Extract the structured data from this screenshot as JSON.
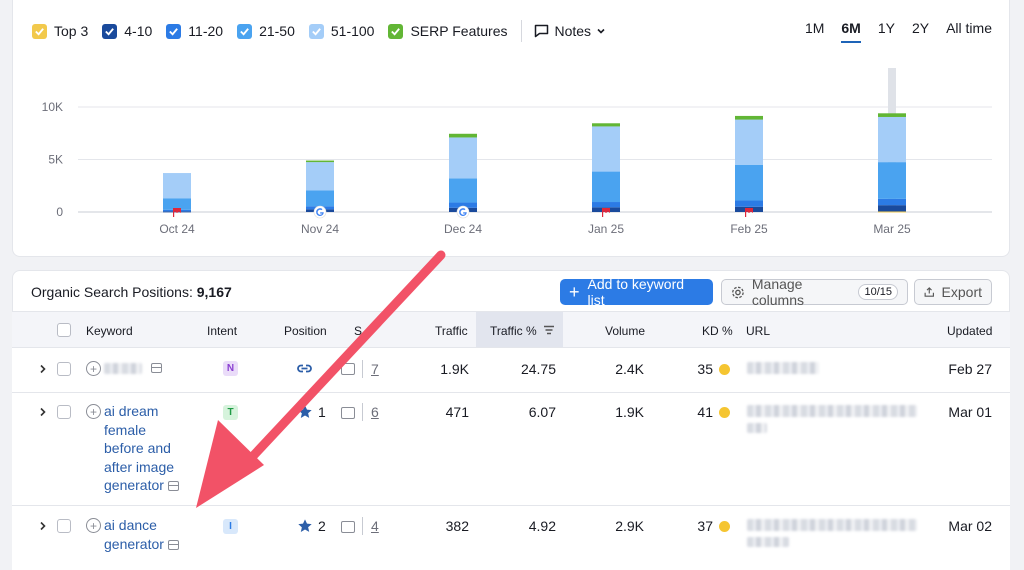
{
  "legend": [
    {
      "label": "Top 3",
      "color": "#f2c94c"
    },
    {
      "label": "4-10",
      "color": "#1a4a9c"
    },
    {
      "label": "11-20",
      "color": "#2c7be5"
    },
    {
      "label": "21-50",
      "color": "#4aa3f0"
    },
    {
      "label": "51-100",
      "color": "#a4cdf8"
    },
    {
      "label": "SERP Features",
      "color": "#62b635"
    }
  ],
  "notes_label": "Notes",
  "ranges": [
    "1M",
    "6M",
    "1Y",
    "2Y",
    "All time"
  ],
  "active_range": "6M",
  "chart_data": {
    "type": "bar",
    "stacked": true,
    "categories": [
      "Oct 24",
      "Nov 24",
      "Dec 24",
      "Jan 25",
      "Feb 25",
      "Mar 25"
    ],
    "y_ticks": [
      "0",
      "5K",
      "10K"
    ],
    "ylim": [
      0,
      10000
    ],
    "series": [
      {
        "name": "Top 3",
        "values": [
          0,
          0,
          0,
          0,
          0,
          50
        ]
      },
      {
        "name": "4-10",
        "values": [
          60,
          250,
          400,
          450,
          500,
          600
        ]
      },
      {
        "name": "11-20",
        "values": [
          150,
          300,
          500,
          500,
          600,
          600
        ]
      },
      {
        "name": "21-50",
        "values": [
          1100,
          1500,
          2300,
          2900,
          3400,
          3500
        ]
      },
      {
        "name": "51-100",
        "values": [
          2400,
          2700,
          3900,
          4300,
          4300,
          4300
        ]
      },
      {
        "name": "SERP Features",
        "values": [
          0,
          150,
          350,
          300,
          350,
          350
        ]
      }
    ]
  },
  "table": {
    "title": "Organic Search Positions:",
    "count": "9,167",
    "add_button": "Add to keyword list",
    "manage_button": "Manage columns",
    "manage_count": "10/15",
    "export_button": "Export",
    "headers": {
      "keyword": "Keyword",
      "intent": "Intent",
      "position": "Position",
      "serp": "S",
      "traffic": "Traffic",
      "traffic_pct": "Traffic %",
      "volume": "Volume",
      "kd": "KD %",
      "url": "URL",
      "updated": "Updated"
    },
    "rows": [
      {
        "keyword": "",
        "intent": "N",
        "position": "",
        "serp_count": "7",
        "traffic": "1.9K",
        "traffic_pct": "24.75",
        "volume": "2.4K",
        "kd": "35",
        "updated": "Feb 27"
      },
      {
        "keyword": "ai dream female before and after image generator",
        "intent": "T",
        "position": "1",
        "serp_count": "6",
        "traffic": "471",
        "traffic_pct": "6.07",
        "volume": "1.9K",
        "kd": "41",
        "updated": "Mar 01"
      },
      {
        "keyword": "ai dance generator",
        "intent": "I",
        "position": "2",
        "serp_count": "4",
        "traffic": "382",
        "traffic_pct": "4.92",
        "volume": "2.9K",
        "kd": "37",
        "updated": "Mar 02"
      }
    ]
  }
}
